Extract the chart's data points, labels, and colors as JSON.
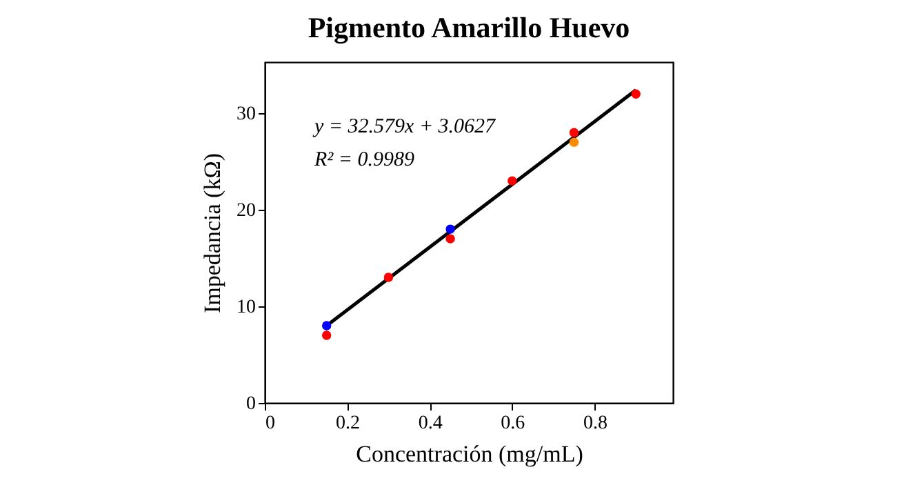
{
  "chart_data": {
    "type": "scatter",
    "title": "Pigmento Amarillo Huevo",
    "xlabel": "Concentración (mg/mL)",
    "ylabel": "Impedancia (kΩ)",
    "xlim": [
      0,
      0.99
    ],
    "ylim": [
      0,
      35.3
    ],
    "xticks": [
      0,
      0.2,
      0.4,
      0.6,
      0.8
    ],
    "yticks": [
      0,
      10,
      20,
      30
    ],
    "grid": false,
    "marker": "circle",
    "annotations": [
      "y = 32.579x + 3.0627",
      "R² = 0.9989"
    ],
    "series": [
      {
        "type": "line",
        "color": "#000000",
        "line_style": "solid",
        "marker": "none",
        "x": [
          0.15,
          0.9
        ],
        "values": [
          8,
          32.4
        ]
      },
      {
        "color": "#ff0000",
        "x": [
          0.15,
          0.3,
          0.45,
          0.6,
          0.75,
          0.9
        ],
        "values": [
          7,
          13,
          17,
          23,
          28,
          32
        ]
      },
      {
        "color": "#0000ff",
        "x": [
          0.15,
          0.45
        ],
        "values": [
          8,
          18
        ]
      },
      {
        "color": "#ff8c00",
        "x": [
          0.75
        ],
        "values": [
          27
        ]
      }
    ]
  }
}
